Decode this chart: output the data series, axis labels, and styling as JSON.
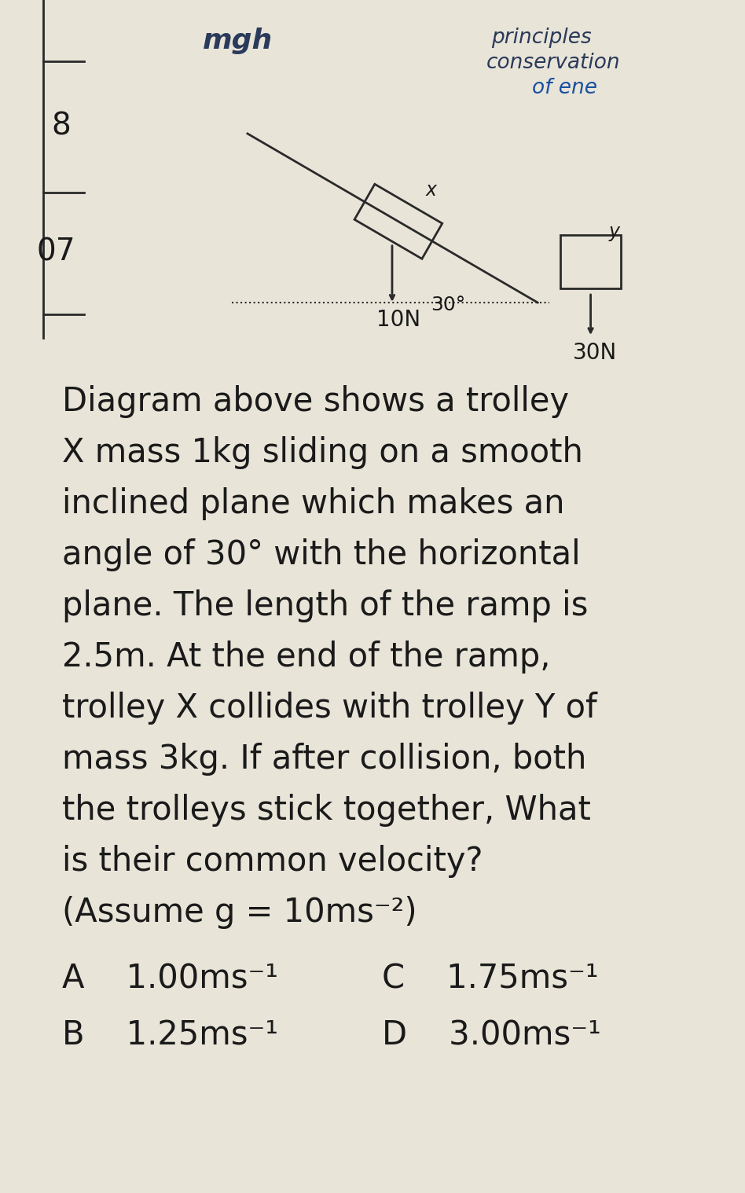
{
  "bg_color": "#e8e4d8",
  "question_number": "8",
  "side_number": "07",
  "handwritten_top_left": "mgh",
  "handwritten_top_right_line1": "principles",
  "handwritten_top_right_line2": "conservation",
  "handwritten_top_right_line3": "of ene",
  "diagram_label_x_trolley": "x",
  "diagram_label_weight_x": "10N",
  "diagram_label_angle": "30°",
  "diagram_label_y_trolley": "y",
  "diagram_label_weight_y": "30N",
  "question_text_lines": [
    "Diagram above shows a trolley",
    "X mass 1kg sliding on a smooth",
    "inclined plane which makes an",
    "angle of 30° with the horizontal",
    "plane. The length of the ramp is",
    "2.5m. At the end of the ramp,",
    "trolley X collides with trolley Y of",
    "mass 3kg. If after collision, both",
    "the trolleys stick together, What",
    "is their common velocity?",
    "(Assume g = 10ms⁻²)"
  ],
  "option_A": "A    1.00ms⁻¹",
  "option_C": "C    1.75ms⁻¹",
  "option_B": "B    1.25ms⁻¹",
  "option_D": "D    3.00ms⁻¹",
  "text_color": "#1a1a1a",
  "line_color": "#2a2a2a",
  "handwritten_color": "#2a3a5a",
  "handwritten_color2": "#1a50a0"
}
